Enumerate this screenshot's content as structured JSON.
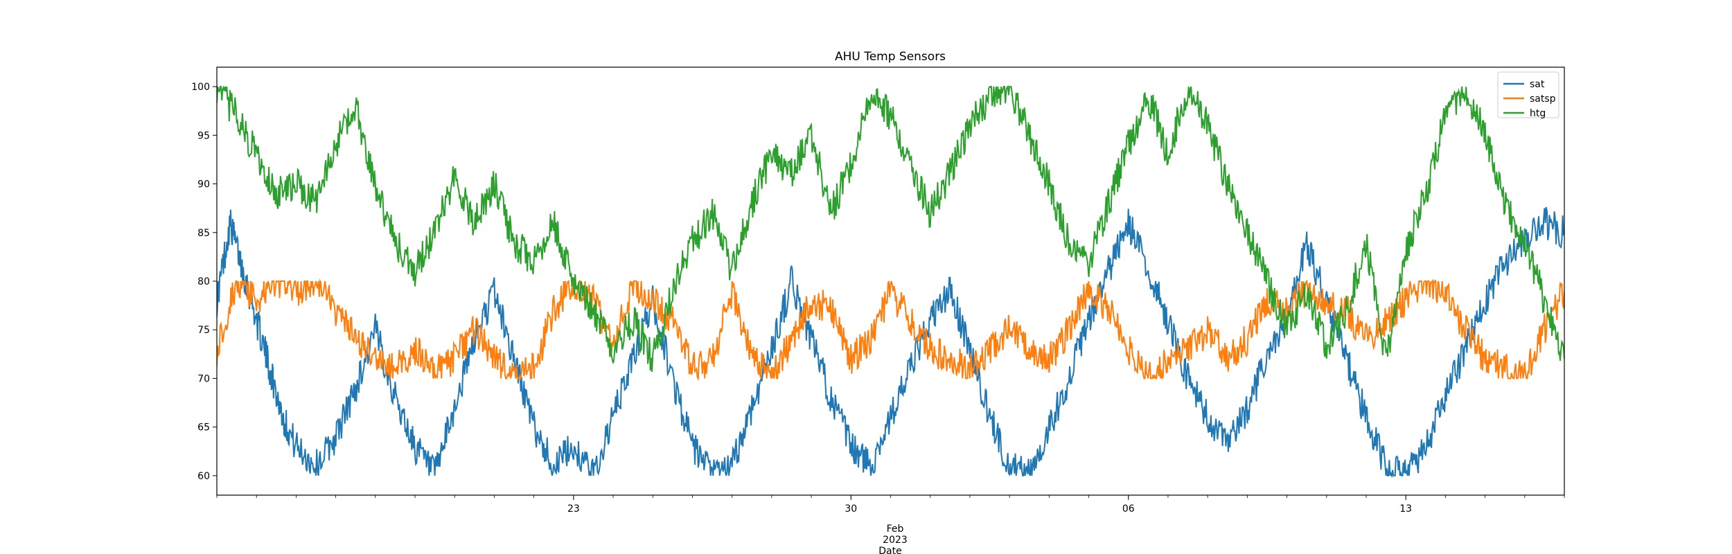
{
  "chart_data": {
    "type": "line",
    "title": "AHU Temp Sensors",
    "xlabel": "Date",
    "ylabel": "",
    "x_range": [
      "2023-01-14",
      "2023-02-17"
    ],
    "ylim": [
      58,
      102
    ],
    "y_ticks": [
      60,
      65,
      70,
      75,
      80,
      85,
      90,
      95,
      100
    ],
    "x_ticks": [
      {
        "date": "2023-01-23",
        "label": "23"
      },
      {
        "date": "2023-01-30",
        "label": "30"
      },
      {
        "date": "2023-02-06",
        "label": "06"
      },
      {
        "date": "2023-02-13",
        "label": "13"
      }
    ],
    "x_axis_month_label": "Feb",
    "x_axis_year_label": "2023",
    "grid": false,
    "legend_placement": "top-right",
    "series": [
      {
        "name": "sat",
        "color": "#1f77b4",
        "values": [
          [
            "2023-01-14",
            78
          ],
          [
            "2023-01-14T08:00",
            86
          ],
          [
            "2023-01-14T16:00",
            81
          ],
          [
            "2023-01-15",
            76
          ],
          [
            "2023-01-15T08:00",
            71
          ],
          [
            "2023-01-15T16:00",
            66
          ],
          [
            "2023-01-16",
            63
          ],
          [
            "2023-01-16T12:00",
            61
          ],
          [
            "2023-01-17",
            64
          ],
          [
            "2023-01-17T12:00",
            69
          ],
          [
            "2023-01-18",
            75
          ],
          [
            "2023-01-18T12:00",
            68
          ],
          [
            "2023-01-19",
            63
          ],
          [
            "2023-01-19T12:00",
            60
          ],
          [
            "2023-01-20",
            67
          ],
          [
            "2023-01-20T12:00",
            74
          ],
          [
            "2023-01-21",
            79
          ],
          [
            "2023-01-21T12:00",
            72
          ],
          [
            "2023-01-22",
            65
          ],
          [
            "2023-01-22T12:00",
            61
          ],
          [
            "2023-01-23",
            63
          ],
          [
            "2023-01-23T12:00",
            60
          ],
          [
            "2023-01-24",
            66
          ],
          [
            "2023-01-24T12:00",
            72
          ],
          [
            "2023-01-25",
            78
          ],
          [
            "2023-01-25T12:00",
            70
          ],
          [
            "2023-01-26",
            63
          ],
          [
            "2023-01-26T12:00",
            60
          ],
          [
            "2023-01-27",
            61
          ],
          [
            "2023-01-27T12:00",
            67
          ],
          [
            "2023-01-28",
            73
          ],
          [
            "2023-01-28T12:00",
            80
          ],
          [
            "2023-01-29",
            74
          ],
          [
            "2023-01-29T12:00",
            68
          ],
          [
            "2023-01-30",
            63
          ],
          [
            "2023-01-30T12:00",
            61
          ],
          [
            "2023-01-31",
            66
          ],
          [
            "2023-01-31T12:00",
            71
          ],
          [
            "2023-02-01",
            76
          ],
          [
            "2023-02-01T12:00",
            79
          ],
          [
            "2023-02-02",
            73
          ],
          [
            "2023-02-02T12:00",
            66
          ],
          [
            "2023-02-03",
            61
          ],
          [
            "2023-02-03T12:00",
            60
          ],
          [
            "2023-02-04",
            65
          ],
          [
            "2023-02-04T12:00",
            70
          ],
          [
            "2023-02-05",
            76
          ],
          [
            "2023-02-05T12:00",
            81
          ],
          [
            "2023-02-06",
            86
          ],
          [
            "2023-02-06T12:00",
            81
          ],
          [
            "2023-02-07",
            76
          ],
          [
            "2023-02-07T12:00",
            70
          ],
          [
            "2023-02-08",
            66
          ],
          [
            "2023-02-08T12:00",
            63
          ],
          [
            "2023-02-09",
            67
          ],
          [
            "2023-02-09T12:00",
            72
          ],
          [
            "2023-02-10",
            76
          ],
          [
            "2023-02-10T12:00",
            84
          ],
          [
            "2023-02-11",
            78
          ],
          [
            "2023-02-11T12:00",
            72
          ],
          [
            "2023-02-12",
            66
          ],
          [
            "2023-02-12T12:00",
            61
          ],
          [
            "2023-02-13",
            60
          ],
          [
            "2023-02-13T12:00",
            63
          ],
          [
            "2023-02-14",
            68
          ],
          [
            "2023-02-14T12:00",
            73
          ],
          [
            "2023-02-15",
            78
          ],
          [
            "2023-02-15T12:00",
            82
          ],
          [
            "2023-02-16",
            84
          ],
          [
            "2023-02-16T12:00",
            86
          ],
          [
            "2023-02-17",
            85
          ]
        ]
      },
      {
        "name": "satsp",
        "color": "#ff7f0e",
        "values": [
          [
            "2023-01-14",
            73
          ],
          [
            "2023-01-14T12:00",
            80
          ],
          [
            "2023-01-15",
            78
          ],
          [
            "2023-01-15T12:00",
            80
          ],
          [
            "2023-01-16",
            79
          ],
          [
            "2023-01-16T12:00",
            80
          ],
          [
            "2023-01-17",
            77
          ],
          [
            "2023-01-17T12:00",
            74
          ],
          [
            "2023-01-18",
            72
          ],
          [
            "2023-01-18T12:00",
            71
          ],
          [
            "2023-01-19",
            73
          ],
          [
            "2023-01-19T12:00",
            71
          ],
          [
            "2023-01-20",
            72
          ],
          [
            "2023-01-20T12:00",
            75
          ],
          [
            "2023-01-21",
            72
          ],
          [
            "2023-01-21T12:00",
            70
          ],
          [
            "2023-01-22",
            71
          ],
          [
            "2023-01-22T12:00",
            77
          ],
          [
            "2023-01-23",
            80
          ],
          [
            "2023-01-23T12:00",
            78
          ],
          [
            "2023-01-24",
            73
          ],
          [
            "2023-01-24T12:00",
            80
          ],
          [
            "2023-01-25",
            78
          ],
          [
            "2023-01-25T12:00",
            76
          ],
          [
            "2023-01-26",
            71
          ],
          [
            "2023-01-26T12:00",
            72
          ],
          [
            "2023-01-27",
            79
          ],
          [
            "2023-01-27T12:00",
            72
          ],
          [
            "2023-01-28",
            70
          ],
          [
            "2023-01-28T12:00",
            74
          ],
          [
            "2023-01-29",
            78
          ],
          [
            "2023-01-29T12:00",
            77
          ],
          [
            "2023-01-30",
            72
          ],
          [
            "2023-01-30T12:00",
            74
          ],
          [
            "2023-01-31",
            79
          ],
          [
            "2023-01-31T12:00",
            76
          ],
          [
            "2023-02-01",
            73
          ],
          [
            "2023-02-01T12:00",
            72
          ],
          [
            "2023-02-02",
            71
          ],
          [
            "2023-02-02T12:00",
            73
          ],
          [
            "2023-02-03",
            75
          ],
          [
            "2023-02-03T12:00",
            73
          ],
          [
            "2023-02-04",
            72
          ],
          [
            "2023-02-04T12:00",
            75
          ],
          [
            "2023-02-05",
            79
          ],
          [
            "2023-02-05T12:00",
            77
          ],
          [
            "2023-02-06",
            73
          ],
          [
            "2023-02-06T12:00",
            70
          ],
          [
            "2023-02-07",
            72
          ],
          [
            "2023-02-07T12:00",
            73
          ],
          [
            "2023-02-08",
            75
          ],
          [
            "2023-02-08T12:00",
            72
          ],
          [
            "2023-02-09",
            74
          ],
          [
            "2023-02-09T12:00",
            78
          ],
          [
            "2023-02-10",
            77
          ],
          [
            "2023-02-10T12:00",
            79
          ],
          [
            "2023-02-11",
            78
          ],
          [
            "2023-02-11T12:00",
            77
          ],
          [
            "2023-02-12",
            74
          ],
          [
            "2023-02-12T12:00",
            76
          ],
          [
            "2023-02-13",
            78
          ],
          [
            "2023-02-13T12:00",
            80
          ],
          [
            "2023-02-14",
            79
          ],
          [
            "2023-02-14T12:00",
            75
          ],
          [
            "2023-02-15",
            72
          ],
          [
            "2023-02-15T12:00",
            71
          ],
          [
            "2023-02-16",
            70
          ],
          [
            "2023-02-16T12:00",
            75
          ],
          [
            "2023-02-17",
            79
          ]
        ]
      },
      {
        "name": "htg",
        "color": "#2ca02c",
        "values": [
          [
            "2023-01-14",
            100
          ],
          [
            "2023-01-14T12:00",
            97
          ],
          [
            "2023-01-15",
            93
          ],
          [
            "2023-01-15T12:00",
            89
          ],
          [
            "2023-01-16",
            90
          ],
          [
            "2023-01-16T12:00",
            88
          ],
          [
            "2023-01-17",
            94
          ],
          [
            "2023-01-17T12:00",
            98
          ],
          [
            "2023-01-18",
            90
          ],
          [
            "2023-01-18T12:00",
            84
          ],
          [
            "2023-01-19",
            81
          ],
          [
            "2023-01-19T12:00",
            85
          ],
          [
            "2023-01-20",
            91
          ],
          [
            "2023-01-20T12:00",
            86
          ],
          [
            "2023-01-21",
            90
          ],
          [
            "2023-01-21T12:00",
            84
          ],
          [
            "2023-01-22",
            82
          ],
          [
            "2023-01-22T12:00",
            86
          ],
          [
            "2023-01-23",
            80
          ],
          [
            "2023-01-23T12:00",
            77
          ],
          [
            "2023-01-24",
            73
          ],
          [
            "2023-01-24T12:00",
            76
          ],
          [
            "2023-01-25",
            72
          ],
          [
            "2023-01-25T12:00",
            79
          ],
          [
            "2023-01-26",
            84
          ],
          [
            "2023-01-26T12:00",
            87
          ],
          [
            "2023-01-27",
            81
          ],
          [
            "2023-01-27T12:00",
            88
          ],
          [
            "2023-01-28",
            93
          ],
          [
            "2023-01-28T12:00",
            91
          ],
          [
            "2023-01-29",
            95
          ],
          [
            "2023-01-29T12:00",
            87
          ],
          [
            "2023-01-30",
            92
          ],
          [
            "2023-01-30T12:00",
            99
          ],
          [
            "2023-01-31",
            97
          ],
          [
            "2023-01-31T12:00",
            92
          ],
          [
            "2023-02-01",
            87
          ],
          [
            "2023-02-01T12:00",
            91
          ],
          [
            "2023-02-02",
            96
          ],
          [
            "2023-02-02T12:00",
            99
          ],
          [
            "2023-02-03",
            100
          ],
          [
            "2023-02-03T12:00",
            95
          ],
          [
            "2023-02-04",
            90
          ],
          [
            "2023-02-04T12:00",
            84
          ],
          [
            "2023-02-05",
            82
          ],
          [
            "2023-02-05T12:00",
            88
          ],
          [
            "2023-02-06",
            94
          ],
          [
            "2023-02-06T12:00",
            99
          ],
          [
            "2023-02-07",
            93
          ],
          [
            "2023-02-07T12:00",
            100
          ],
          [
            "2023-02-08",
            96
          ],
          [
            "2023-02-08T12:00",
            90
          ],
          [
            "2023-02-09",
            85
          ],
          [
            "2023-02-09T12:00",
            80
          ],
          [
            "2023-02-10",
            75
          ],
          [
            "2023-02-10T12:00",
            79
          ],
          [
            "2023-02-11",
            73
          ],
          [
            "2023-02-11T12:00",
            77
          ],
          [
            "2023-02-12",
            84
          ],
          [
            "2023-02-12T12:00",
            72
          ],
          [
            "2023-02-13",
            83
          ],
          [
            "2023-02-13T12:00",
            89
          ],
          [
            "2023-02-14",
            97
          ],
          [
            "2023-02-14T12:00",
            100
          ],
          [
            "2023-02-15",
            95
          ],
          [
            "2023-02-15T12:00",
            88
          ],
          [
            "2023-02-16",
            84
          ],
          [
            "2023-02-16T12:00",
            78
          ],
          [
            "2023-02-17",
            72
          ]
        ]
      }
    ]
  }
}
